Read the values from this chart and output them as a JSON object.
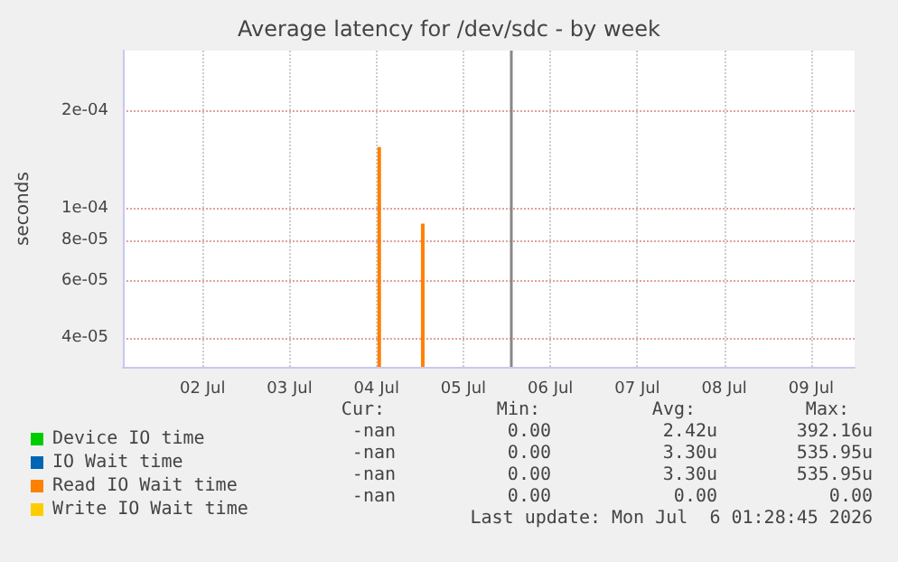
{
  "chart_data": {
    "type": "bar",
    "title": "Average latency for /dev/sdc - by week",
    "ylabel": "seconds",
    "x": [
      "2026-07-04T12:46",
      "2026-07-05T00:47"
    ],
    "series": [
      {
        "name": "Device IO time",
        "color": "#00cc00",
        "values": [
          null,
          null
        ]
      },
      {
        "name": "IO Wait time",
        "color": "#0066b3",
        "values": [
          null,
          null
        ]
      },
      {
        "name": "Read IO Wait time",
        "color": "#ff8000",
        "values": [
          0.000155,
          9e-05
        ]
      },
      {
        "name": "Write IO Wait time",
        "color": "#ffcc00",
        "values": [
          null,
          null
        ]
      }
    ],
    "xlim": [
      "2026-07-01T14:00",
      "2026-07-10T00:00"
    ],
    "xticks": [
      {
        "value": "2026-07-02T12:00",
        "label": "02 Jul"
      },
      {
        "value": "2026-07-03T12:00",
        "label": "03 Jul"
      },
      {
        "value": "2026-07-04T12:00",
        "label": "04 Jul"
      },
      {
        "value": "2026-07-05T12:00",
        "label": "05 Jul"
      },
      {
        "value": "2026-07-06T12:00",
        "label": "06 Jul"
      },
      {
        "value": "2026-07-07T12:00",
        "label": "07 Jul"
      },
      {
        "value": "2026-07-08T12:00",
        "label": "08 Jul"
      },
      {
        "value": "2026-07-09T12:00",
        "label": "09 Jul"
      }
    ],
    "ylim": [
      3.25e-05,
      0.000308
    ],
    "yticks": [
      {
        "value": 4e-05,
        "label": "4e-05"
      },
      {
        "value": 6e-05,
        "label": "6e-05"
      },
      {
        "value": 8e-05,
        "label": "8e-05"
      },
      {
        "value": 0.0001,
        "label": "1e-04"
      },
      {
        "value": 0.0002,
        "label": "2e-04"
      }
    ],
    "log": "y",
    "grid": true,
    "legend": "bottom left",
    "ref_lines": [
      {
        "axis": "x",
        "value": "2026-07-06T01:00",
        "label": null,
        "color": "#888888"
      }
    ],
    "annotations": [
      "Cur:",
      "Min:",
      "Avg:",
      "Max:",
      "-nan",
      "0.00",
      "2.42u",
      "392.16u",
      "-nan",
      "0.00",
      "3.30u",
      "535.95u",
      "-nan",
      "0.00",
      "3.30u",
      "535.95u",
      "-nan",
      "0.00",
      "0.00",
      "0.00",
      "Last update: Mon Jul  6 01:28:45 2026"
    ]
  }
}
